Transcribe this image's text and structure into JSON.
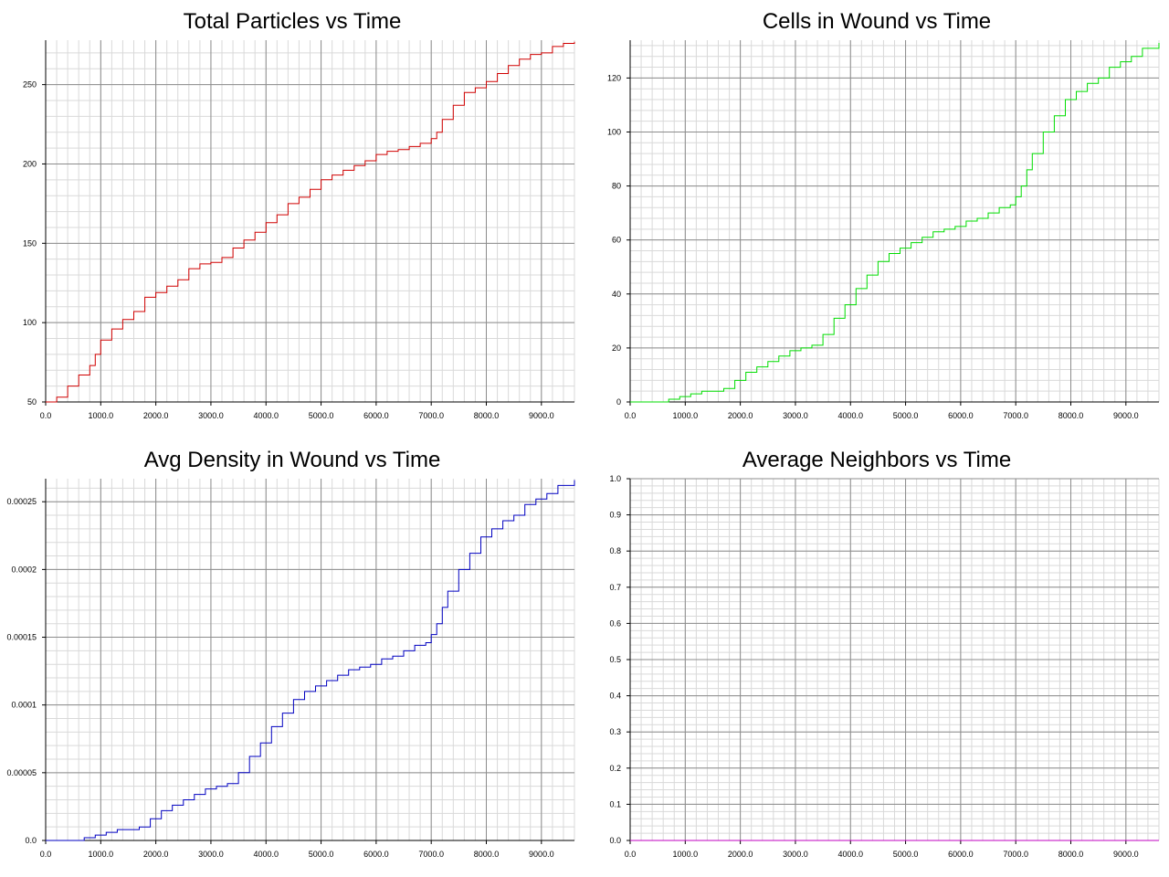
{
  "chart_data": [
    {
      "type": "line",
      "title": "Total Particles vs Time",
      "xlabel": "",
      "ylabel": "",
      "xlim": [
        0,
        9600
      ],
      "ylim": [
        50,
        278
      ],
      "x_ticks": [
        0,
        1000,
        2000,
        3000,
        4000,
        5000,
        6000,
        7000,
        8000,
        9000
      ],
      "x_tick_labels": [
        "0.0",
        "1000.0",
        "2000.0",
        "3000.0",
        "4000.0",
        "5000.0",
        "6000.0",
        "7000.0",
        "8000.0",
        "9000.0"
      ],
      "y_ticks": [
        50,
        100,
        150,
        200,
        250
      ],
      "y_tick_labels": [
        "50",
        "100",
        "150",
        "200",
        "250"
      ],
      "grid": true,
      "series": [
        {
          "color": "#d00000",
          "x": [
            0,
            200,
            400,
            600,
            800,
            900,
            1000,
            1200,
            1400,
            1600,
            1800,
            2000,
            2200,
            2400,
            2600,
            2800,
            3000,
            3200,
            3400,
            3600,
            3800,
            4000,
            4200,
            4400,
            4600,
            4800,
            5000,
            5200,
            5400,
            5600,
            5800,
            6000,
            6200,
            6400,
            6600,
            6800,
            7000,
            7100,
            7200,
            7400,
            7600,
            7800,
            8000,
            8200,
            8400,
            8600,
            8800,
            9000,
            9200,
            9400,
            9600
          ],
          "y": [
            50,
            53,
            60,
            67,
            73,
            80,
            89,
            96,
            102,
            107,
            116,
            119,
            123,
            127,
            134,
            137,
            138,
            141,
            147,
            152,
            157,
            163,
            168,
            175,
            179,
            184,
            190,
            193,
            196,
            199,
            202,
            206,
            208,
            209,
            211,
            213,
            216,
            220,
            228,
            237,
            245,
            248,
            252,
            257,
            262,
            266,
            269,
            270,
            274,
            276,
            277
          ]
        }
      ]
    },
    {
      "type": "line",
      "title": "Cells in Wound vs Time",
      "xlabel": "",
      "ylabel": "",
      "xlim": [
        0,
        9600
      ],
      "ylim": [
        0,
        134
      ],
      "x_ticks": [
        0,
        1000,
        2000,
        3000,
        4000,
        5000,
        6000,
        7000,
        8000,
        9000
      ],
      "x_tick_labels": [
        "0.0",
        "1000.0",
        "2000.0",
        "3000.0",
        "4000.0",
        "5000.0",
        "6000.0",
        "7000.0",
        "8000.0",
        "9000.0"
      ],
      "y_ticks": [
        0,
        20,
        40,
        60,
        80,
        100,
        120
      ],
      "y_tick_labels": [
        "0",
        "20",
        "40",
        "60",
        "80",
        "100",
        "120"
      ],
      "grid": true,
      "series": [
        {
          "color": "#00dd00",
          "x": [
            0,
            500,
            700,
            900,
            1100,
            1300,
            1500,
            1700,
            1900,
            2100,
            2300,
            2500,
            2700,
            2900,
            3100,
            3300,
            3500,
            3700,
            3900,
            4100,
            4300,
            4500,
            4700,
            4900,
            5100,
            5300,
            5500,
            5700,
            5900,
            6100,
            6300,
            6500,
            6700,
            6900,
            7000,
            7100,
            7200,
            7300,
            7500,
            7700,
            7900,
            8100,
            8300,
            8500,
            8700,
            8900,
            9100,
            9300,
            9600
          ],
          "y": [
            0,
            0,
            1,
            2,
            3,
            4,
            4,
            5,
            8,
            11,
            13,
            15,
            17,
            19,
            20,
            21,
            25,
            31,
            36,
            42,
            47,
            52,
            55,
            57,
            59,
            61,
            63,
            64,
            65,
            67,
            68,
            70,
            72,
            73,
            76,
            80,
            86,
            92,
            100,
            106,
            112,
            115,
            118,
            120,
            124,
            126,
            128,
            131,
            133
          ]
        }
      ]
    },
    {
      "type": "line",
      "title": "Avg Density in Wound vs Time",
      "xlabel": "",
      "ylabel": "",
      "xlim": [
        0,
        9600
      ],
      "ylim": [
        0,
        0.000267
      ],
      "x_ticks": [
        0,
        1000,
        2000,
        3000,
        4000,
        5000,
        6000,
        7000,
        8000,
        9000
      ],
      "x_tick_labels": [
        "0.0",
        "1000.0",
        "2000.0",
        "3000.0",
        "4000.0",
        "5000.0",
        "6000.0",
        "7000.0",
        "8000.0",
        "9000.0"
      ],
      "y_ticks": [
        0,
        5e-05,
        0.0001,
        0.00015,
        0.0002,
        0.00025
      ],
      "y_tick_labels": [
        "0.0",
        "0.00005",
        "0.0001",
        "0.00015",
        "0.0002",
        "0.00025"
      ],
      "grid": true,
      "series": [
        {
          "color": "#0000c0",
          "x": [
            0,
            500,
            700,
            900,
            1100,
            1300,
            1500,
            1700,
            1900,
            2100,
            2300,
            2500,
            2700,
            2900,
            3100,
            3300,
            3500,
            3700,
            3900,
            4100,
            4300,
            4500,
            4700,
            4900,
            5100,
            5300,
            5500,
            5700,
            5900,
            6100,
            6300,
            6500,
            6700,
            6900,
            7000,
            7100,
            7200,
            7300,
            7500,
            7700,
            7900,
            8100,
            8300,
            8500,
            8700,
            8900,
            9100,
            9300,
            9600
          ],
          "y": [
            0,
            0,
            2e-06,
            4e-06,
            6e-06,
            8e-06,
            8e-06,
            1e-05,
            1.6e-05,
            2.2e-05,
            2.6e-05,
            3e-05,
            3.4e-05,
            3.8e-05,
            4e-05,
            4.2e-05,
            5e-05,
            6.2e-05,
            7.2e-05,
            8.4e-05,
            9.4e-05,
            0.000104,
            0.00011,
            0.000114,
            0.000118,
            0.000122,
            0.000126,
            0.000128,
            0.00013,
            0.000134,
            0.000136,
            0.00014,
            0.000144,
            0.000146,
            0.000152,
            0.00016,
            0.000172,
            0.000184,
            0.0002,
            0.000212,
            0.000224,
            0.00023,
            0.000236,
            0.00024,
            0.000248,
            0.000252,
            0.000256,
            0.000262,
            0.000266
          ]
        }
      ]
    },
    {
      "type": "line",
      "title": "Average Neighbors vs Time",
      "xlabel": "",
      "ylabel": "",
      "xlim": [
        0,
        9600
      ],
      "ylim": [
        0,
        1.0
      ],
      "x_ticks": [
        0,
        1000,
        2000,
        3000,
        4000,
        5000,
        6000,
        7000,
        8000,
        9000
      ],
      "x_tick_labels": [
        "0.0",
        "1000.0",
        "2000.0",
        "3000.0",
        "4000.0",
        "5000.0",
        "6000.0",
        "7000.0",
        "8000.0",
        "9000.0"
      ],
      "y_ticks": [
        0,
        0.1,
        0.2,
        0.3,
        0.4,
        0.5,
        0.6,
        0.7,
        0.8,
        0.9,
        1.0
      ],
      "y_tick_labels": [
        "0.0",
        "0.1",
        "0.2",
        "0.3",
        "0.4",
        "0.5",
        "0.6",
        "0.7",
        "0.8",
        "0.9",
        "1.0"
      ],
      "grid": true,
      "series": [
        {
          "color": "#c000c0",
          "x": [
            0,
            9600
          ],
          "y": [
            0,
            0
          ]
        }
      ]
    }
  ]
}
